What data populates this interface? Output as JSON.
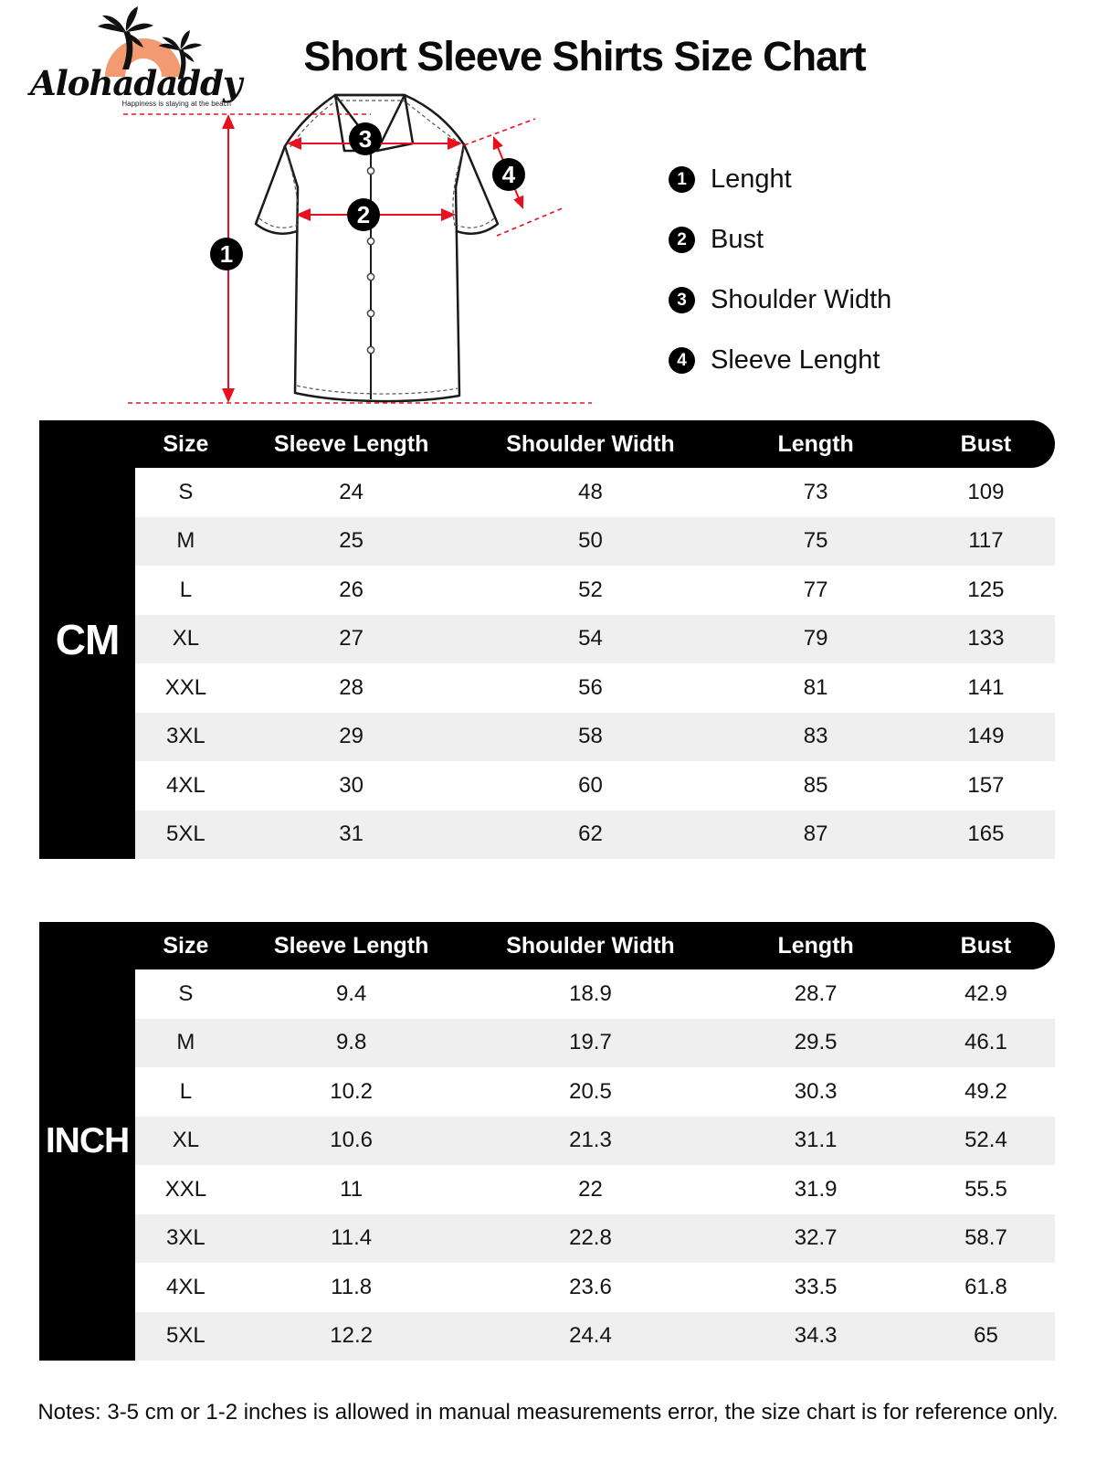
{
  "brand": {
    "name": "Alohadaddy",
    "tagline": "Happiness is staying at the beach"
  },
  "title": "Short Sleeve Shirts Size Chart",
  "legend": [
    {
      "num": "1",
      "label": "Lenght"
    },
    {
      "num": "2",
      "label": "Bust"
    },
    {
      "num": "3",
      "label": "Shoulder Width"
    },
    {
      "num": "4",
      "label": "Sleeve Lenght"
    }
  ],
  "tables": [
    {
      "unit_label": "CM",
      "columns": [
        "Size",
        "Sleeve Length",
        "Shoulder Width",
        "Length",
        "Bust"
      ],
      "rows": [
        [
          "S",
          "24",
          "48",
          "73",
          "109"
        ],
        [
          "M",
          "25",
          "50",
          "75",
          "117"
        ],
        [
          "L",
          "26",
          "52",
          "77",
          "125"
        ],
        [
          "XL",
          "27",
          "54",
          "79",
          "133"
        ],
        [
          "XXL",
          "28",
          "56",
          "81",
          "141"
        ],
        [
          "3XL",
          "29",
          "58",
          "83",
          "149"
        ],
        [
          "4XL",
          "30",
          "60",
          "85",
          "157"
        ],
        [
          "5XL",
          "31",
          "62",
          "87",
          "165"
        ]
      ]
    },
    {
      "unit_label": "INCH",
      "columns": [
        "Size",
        "Sleeve Length",
        "Shoulder Width",
        "Length",
        "Bust"
      ],
      "rows": [
        [
          "S",
          "9.4",
          "18.9",
          "28.7",
          "42.9"
        ],
        [
          "M",
          "9.8",
          "19.7",
          "29.5",
          "46.1"
        ],
        [
          "L",
          "10.2",
          "20.5",
          "30.3",
          "49.2"
        ],
        [
          "XL",
          "10.6",
          "21.3",
          "31.1",
          "52.4"
        ],
        [
          "XXL",
          "11",
          "22",
          "31.9",
          "55.5"
        ],
        [
          "3XL",
          "11.4",
          "22.8",
          "32.7",
          "58.7"
        ],
        [
          "4XL",
          "11.8",
          "23.6",
          "33.5",
          "61.8"
        ],
        [
          "5XL",
          "12.2",
          "24.4",
          "34.3",
          "65"
        ]
      ]
    }
  ],
  "note": "Notes: 3-5 cm or 1-2 inches is allowed in manual measurements error, the size chart is for reference only.",
  "colors": {
    "accent_red": "#E8101E",
    "row_alt_gray": "#EFEFEF",
    "table_black": "#000000",
    "logo_orange": "#F29B73"
  }
}
